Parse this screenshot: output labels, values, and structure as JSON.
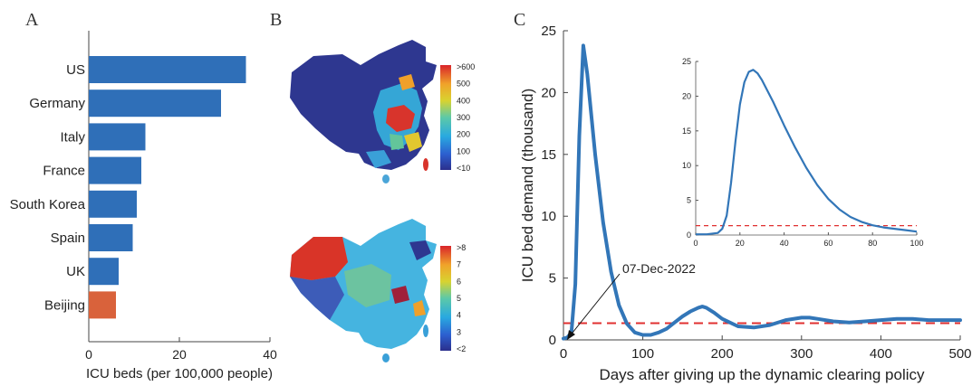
{
  "panel_labels": {
    "a": "A",
    "b": "B",
    "c": "C"
  },
  "chart_data": [
    {
      "type": "bar",
      "orientation": "horizontal",
      "categories": [
        "US",
        "Germany",
        "Italy",
        "France",
        "South Korea",
        "Spain",
        "UK",
        "Beijing"
      ],
      "values": [
        34.7,
        29.2,
        12.5,
        11.6,
        10.6,
        9.7,
        6.6,
        6.0
      ],
      "colors": [
        "#2f6fb8",
        "#2f6fb8",
        "#2f6fb8",
        "#2f6fb8",
        "#2f6fb8",
        "#2f6fb8",
        "#2f6fb8",
        "#d9623b"
      ],
      "xlabel": "ICU beds (per 100,000 people)",
      "xlim": [
        0,
        40
      ],
      "xticks": [
        "0",
        "20",
        "40"
      ]
    },
    {
      "type": "choropleth",
      "maps": [
        {
          "colorbar_ticks": [
            ">600",
            "500",
            "400",
            "300",
            "200",
            "100",
            "<10"
          ]
        },
        {
          "colorbar_ticks": [
            ">8",
            "7",
            "6",
            "5",
            "4",
            "3",
            "<2"
          ]
        }
      ]
    },
    {
      "type": "line",
      "xlabel": "Days after giving up the dynamic clearing policy",
      "ylabel": "ICU bed demand (thousand)",
      "xlim": [
        0,
        500
      ],
      "ylim": [
        0,
        25
      ],
      "xticks": [
        "0",
        "100",
        "200",
        "300",
        "400",
        "500"
      ],
      "yticks": [
        "0",
        "5",
        "10",
        "15",
        "20",
        "25"
      ],
      "series": [
        {
          "x": [
            0,
            5,
            10,
            15,
            20,
            25,
            30,
            40,
            50,
            60,
            70,
            80,
            90,
            100,
            110,
            120,
            130,
            140,
            150,
            160,
            170,
            175,
            180,
            190,
            200,
            220,
            240,
            260,
            280,
            300,
            310,
            320,
            340,
            360,
            380,
            400,
            420,
            440,
            460,
            480,
            500
          ],
          "values": [
            0.1,
            0.2,
            0.6,
            4.5,
            16.5,
            23.8,
            21.5,
            15.0,
            9.5,
            5.5,
            2.8,
            1.3,
            0.6,
            0.4,
            0.4,
            0.6,
            0.9,
            1.4,
            1.9,
            2.3,
            2.6,
            2.7,
            2.6,
            2.2,
            1.7,
            1.1,
            1.0,
            1.2,
            1.6,
            1.8,
            1.8,
            1.7,
            1.5,
            1.4,
            1.5,
            1.6,
            1.7,
            1.7,
            1.6,
            1.6,
            1.6
          ],
          "color": "#3276b8"
        }
      ],
      "threshold": {
        "value": 1.35,
        "color": "#e03030"
      },
      "annotation": {
        "text": "07-Dec-2022",
        "x": 0,
        "y": 0.1
      },
      "inset": {
        "xlim": [
          0,
          100
        ],
        "ylim": [
          0,
          25
        ],
        "xticks": [
          "0",
          "20",
          "40",
          "60",
          "80",
          "100"
        ],
        "yticks": [
          "0",
          "5",
          "10",
          "15",
          "20",
          "25"
        ],
        "series": [
          {
            "x": [
              0,
              5,
              10,
              12,
              14,
              16,
              18,
              20,
              22,
              24,
              26,
              28,
              30,
              35,
              40,
              45,
              50,
              55,
              60,
              65,
              70,
              75,
              80,
              85,
              90,
              95,
              100
            ],
            "values": [
              0.1,
              0.1,
              0.3,
              0.9,
              2.8,
              7.5,
              13.5,
              18.8,
              22.0,
              23.5,
              23.8,
              23.3,
              22.3,
              19.2,
              15.8,
              12.6,
              9.7,
              7.2,
              5.2,
              3.7,
              2.6,
              1.9,
              1.4,
              1.1,
              0.9,
              0.7,
              0.5
            ],
            "color": "#3276b8"
          }
        ],
        "threshold": {
          "value": 1.35,
          "color": "#e03030"
        }
      }
    }
  ]
}
